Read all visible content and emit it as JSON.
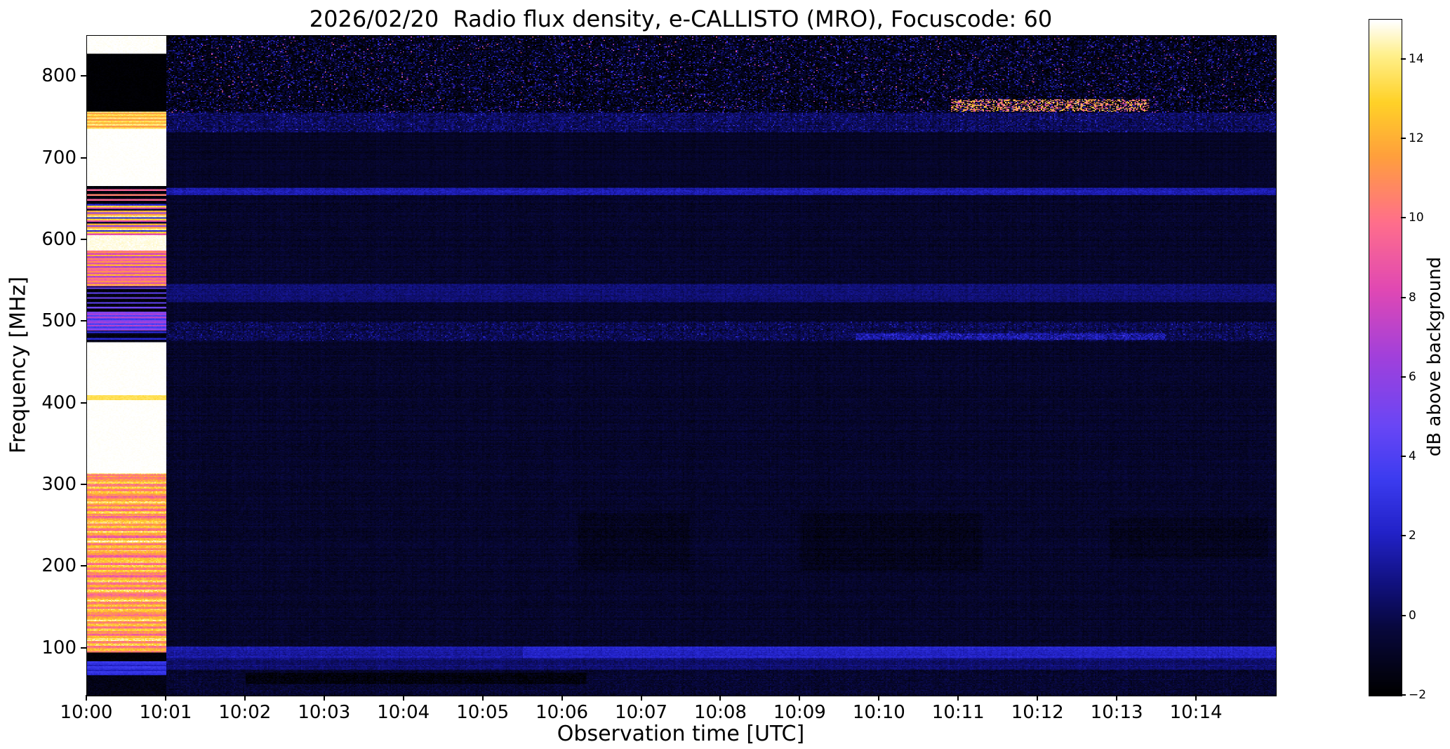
{
  "chart_data": {
    "type": "heatmap",
    "title": "2026/02/20  Radio flux density, e-CALLISTO (MRO), Focuscode: 60",
    "xlabel": "Observation time [UTC]",
    "ylabel": "Frequency [MHz]",
    "colorbar_label": "dB above background",
    "x_ticks": [
      {
        "minute": 0,
        "label": "10:00"
      },
      {
        "minute": 1,
        "label": "10:01"
      },
      {
        "minute": 2,
        "label": "10:02"
      },
      {
        "minute": 3,
        "label": "10:03"
      },
      {
        "minute": 4,
        "label": "10:04"
      },
      {
        "minute": 5,
        "label": "10:05"
      },
      {
        "minute": 6,
        "label": "10:06"
      },
      {
        "minute": 7,
        "label": "10:07"
      },
      {
        "minute": 8,
        "label": "10:08"
      },
      {
        "minute": 9,
        "label": "10:09"
      },
      {
        "minute": 10,
        "label": "10:10"
      },
      {
        "minute": 11,
        "label": "10:11"
      },
      {
        "minute": 12,
        "label": "10:12"
      },
      {
        "minute": 13,
        "label": "10:13"
      },
      {
        "minute": 14,
        "label": "10:14"
      }
    ],
    "x_range_minutes": [
      0,
      15
    ],
    "y_ticks": [
      {
        "mhz": 100,
        "label": "100"
      },
      {
        "mhz": 200,
        "label": "200"
      },
      {
        "mhz": 300,
        "label": "300"
      },
      {
        "mhz": 400,
        "label": "400"
      },
      {
        "mhz": 500,
        "label": "500"
      },
      {
        "mhz": 600,
        "label": "600"
      },
      {
        "mhz": 700,
        "label": "700"
      },
      {
        "mhz": 800,
        "label": "800"
      }
    ],
    "y_range_mhz": [
      42,
      850
    ],
    "value_range_db": [
      -2,
      15
    ],
    "colorbar_ticks": [
      {
        "v": 14,
        "label": "14"
      },
      {
        "v": 12,
        "label": "12"
      },
      {
        "v": 10,
        "label": "10"
      },
      {
        "v": 8,
        "label": "8"
      },
      {
        "v": 6,
        "label": "6"
      },
      {
        "v": 4,
        "label": "4"
      },
      {
        "v": 2,
        "label": "2"
      },
      {
        "v": 0,
        "label": "0"
      },
      {
        "v": -2,
        "label": "−2"
      }
    ],
    "colormap": "black-blue-violet-magenta-orange-yellow-white (gnuplot2-like)",
    "colormap_stops": [
      [
        0.0,
        "#000000"
      ],
      [
        0.1,
        "#08083e"
      ],
      [
        0.16,
        "#10107a"
      ],
      [
        0.24,
        "#2222c8"
      ],
      [
        0.32,
        "#3c3cf0"
      ],
      [
        0.4,
        "#6a46f5"
      ],
      [
        0.5,
        "#a040dc"
      ],
      [
        0.6,
        "#e048b4"
      ],
      [
        0.7,
        "#ff6e8c"
      ],
      [
        0.8,
        "#ffa03c"
      ],
      [
        0.88,
        "#ffd228"
      ],
      [
        0.95,
        "#fff08c"
      ],
      [
        1.0,
        "#ffffff"
      ]
    ],
    "calibration": {
      "t_range_min": [
        0,
        1.0
      ],
      "note": "bright calibration/saturated column during first minute",
      "bands": [
        {
          "f": [
            828,
            851
          ],
          "base": 15,
          "noise": 0.15
        },
        {
          "f": [
            757,
            828
          ],
          "base": -1.9,
          "noise": 0.15
        },
        {
          "f": [
            736,
            757
          ],
          "stripes": [
            13.5,
            12,
            14,
            11.5
          ],
          "period": 2,
          "noise": 0.4
        },
        {
          "f": [
            666,
            736
          ],
          "base": 15,
          "noise": 0.1
        },
        {
          "f": [
            644,
            666
          ],
          "stripes": [
            -1.7,
            10.5,
            -1.7,
            -1.5,
            9.5,
            -1.7
          ],
          "period": 2,
          "noise": 0.3
        },
        {
          "f": [
            606,
            644
          ],
          "stripes": [
            13,
            8.5,
            -0.5,
            12,
            6,
            11.5,
            14,
            2.5
          ],
          "period": 2,
          "noise": 0.5
        },
        {
          "f": [
            587,
            606
          ],
          "base": 14.8,
          "noise": 0.2
        },
        {
          "f": [
            543,
            587
          ],
          "stripes": [
            11,
            8,
            12,
            7,
            10.5,
            9.5
          ],
          "period": 2,
          "noise": 0.5
        },
        {
          "f": [
            512,
            543
          ],
          "stripes": [
            -1.6,
            4.5,
            -1.6,
            -1.2,
            5,
            -1.7
          ],
          "period": 2,
          "noise": 0.3
        },
        {
          "f": [
            489,
            512
          ],
          "stripes": [
            6.5,
            4,
            7,
            3.5,
            5.5
          ],
          "period": 2,
          "noise": 0.4
        },
        {
          "f": [
            475,
            489
          ],
          "stripes": [
            -1.4,
            2.5,
            -1.2,
            -1.6
          ],
          "period": 2,
          "noise": 0.3
        },
        {
          "f": [
            410,
            475
          ],
          "base": 15,
          "noise": 0.1
        },
        {
          "f": [
            404,
            410
          ],
          "base": 13.5,
          "noise": 0.3
        },
        {
          "f": [
            314,
            404
          ],
          "base": 15,
          "noise": 0.1
        },
        {
          "f": [
            95,
            314
          ],
          "stripes": [
            13.5,
            11,
            14,
            12,
            10.5,
            13,
            14.5,
            11.5
          ],
          "period": 3,
          "noise": 0.9,
          "rowjitter": 1
        },
        {
          "f": [
            84,
            95
          ],
          "base": -1.8,
          "noise": 0.2
        },
        {
          "f": [
            67,
            84
          ],
          "stripes": [
            2.8,
            2,
            3.2
          ],
          "period": 2,
          "noise": 0.4
        },
        {
          "f": [
            40,
            67
          ],
          "base": -1.4,
          "noise": 0.4
        }
      ]
    },
    "main": {
      "t_range_min": [
        1.0,
        15.0
      ],
      "background": {
        "base": -0.45,
        "noise": 0.45
      },
      "bands": [
        {
          "f": [
            756,
            851
          ],
          "base": -1.0,
          "noise": 1.3,
          "speckle": {
            "prob": 0.2,
            "amp": 4.5
          },
          "pink_prob": 0.012
        },
        {
          "f": [
            732,
            756
          ],
          "base": 0.7,
          "noise": 1.0,
          "speckle": {
            "prob": 0.07,
            "amp": 3
          }
        },
        {
          "f": [
            666,
            732
          ],
          "base": -0.55,
          "noise": 0.35
        },
        {
          "f": [
            655,
            664
          ],
          "base": 2.0,
          "noise": 0.6
        },
        {
          "f": [
            524,
            546
          ],
          "base": 1.0,
          "noise": 0.5
        },
        {
          "f": [
            476,
            500
          ],
          "base": 0.4,
          "noise": 0.9,
          "speckle": {
            "prob": 0.08,
            "amp": 2.5
          }
        },
        {
          "f": [
            88,
            102
          ],
          "base": 1.8,
          "noise": 0.5
        },
        {
          "f": [
            74,
            88
          ],
          "base": 0.9,
          "noise": 0.5
        },
        {
          "f": [
            40,
            74
          ],
          "base": -0.3,
          "noise": 0.6
        }
      ],
      "features": {
        "hot_rfi": {
          "f": [
            757,
            772
          ],
          "t": [
            10.9,
            13.4
          ],
          "prob": 0.45,
          "value": [
            8,
            14
          ]
        },
        "rfi_line_480": {
          "f": [
            478,
            486
          ],
          "t": [
            9.7,
            13.6
          ],
          "add": 1.6
        },
        "bottom_brighten": {
          "f": [
            88,
            102
          ],
          "t": [
            5.5,
            15
          ],
          "add": 0.7
        },
        "dark_row_low": {
          "f": [
            56,
            70
          ],
          "t": [
            2.0,
            6.3
          ],
          "add": -1.0
        },
        "dark_patches": [
          {
            "f": [
              195,
              265
            ],
            "t": [
              6.2,
              7.6
            ],
            "add": -0.35
          },
          {
            "f": [
              195,
              265
            ],
            "t": [
              9.0,
              11.3
            ],
            "add": -0.4
          },
          {
            "f": [
              210,
              260
            ],
            "t": [
              12.9,
              14.9
            ],
            "add": -0.35
          }
        ]
      }
    }
  }
}
